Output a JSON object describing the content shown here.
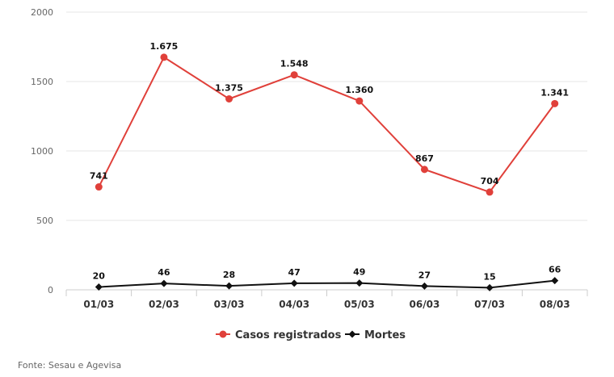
{
  "chart_data": {
    "type": "line",
    "categories": [
      "01/03",
      "02/03",
      "03/03",
      "04/03",
      "05/03",
      "06/03",
      "07/03",
      "08/03"
    ],
    "series": [
      {
        "name": "Casos registrados",
        "values": [
          741,
          1675,
          1375,
          1548,
          1360,
          867,
          704,
          1341
        ],
        "labels": [
          "741",
          "1.675",
          "1.375",
          "1.548",
          "1.360",
          "867",
          "704",
          "1.341"
        ],
        "color": "#e0403a",
        "marker": "circle"
      },
      {
        "name": "Mortes",
        "values": [
          20,
          46,
          28,
          47,
          49,
          27,
          15,
          66
        ],
        "labels": [
          "20",
          "46",
          "28",
          "47",
          "49",
          "27",
          "15",
          "66"
        ],
        "color": "#111111",
        "marker": "diamond"
      }
    ],
    "yticks": [
      "2000",
      "1500",
      "1000",
      "500",
      "0"
    ],
    "ylim": [
      0,
      2000
    ],
    "grid": true,
    "legend": "bottom-center",
    "xlabel": "",
    "ylabel": ""
  },
  "footer": {
    "source": "Fonte: Sesau e Agevisa"
  }
}
